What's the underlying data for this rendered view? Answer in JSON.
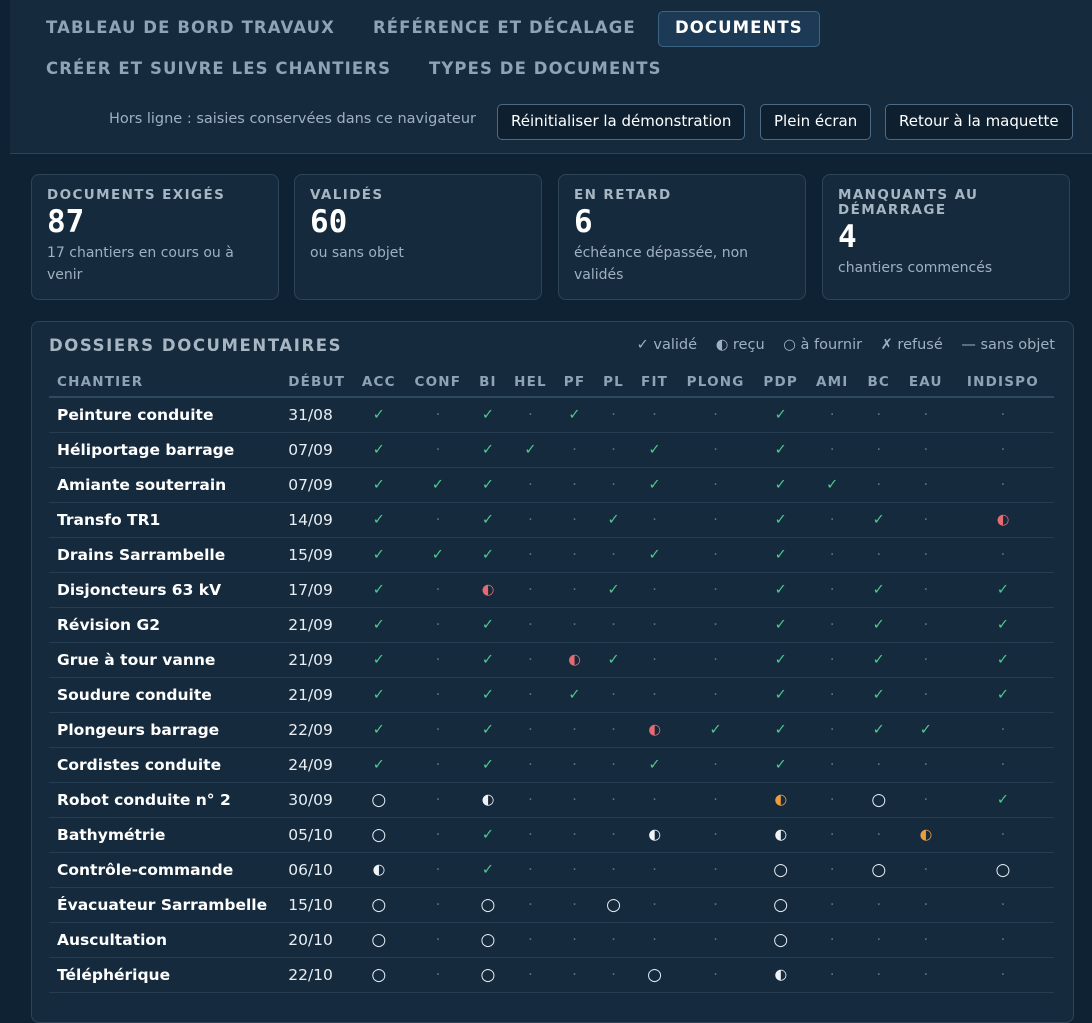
{
  "nav": {
    "tabs": [
      {
        "label": "TABLEAU DE BORD TRAVAUX"
      },
      {
        "label": "RÉFÉRENCE ET DÉCALAGE"
      },
      {
        "label": "DOCUMENTS"
      },
      {
        "label": "CRÉER ET SUIVRE LES CHANTIERS"
      },
      {
        "label": "TYPES DE DOCUMENTS"
      }
    ],
    "active_tab": "DOCUMENTS"
  },
  "toolbar": {
    "offline_note": "Hors ligne : saisies conservées dans ce navigateur",
    "reset_label": "Réinitialiser la démonstration",
    "fullscreen_label": "Plein écran",
    "back_label": "Retour à la maquette"
  },
  "cards": [
    {
      "label": "DOCUMENTS EXIGÉS",
      "value": "87",
      "sub": "17 chantiers en cours ou à venir"
    },
    {
      "label": "VALIDÉS",
      "value": "60",
      "sub": "ou sans objet"
    },
    {
      "label": "EN RETARD",
      "value": "6",
      "sub": "échéance dépassée, non validés"
    },
    {
      "label": "MANQUANTS AU DÉMARRAGE",
      "value": "4",
      "sub": "chantiers commencés"
    }
  ],
  "panel": {
    "title": "DOSSIERS DOCUMENTAIRES",
    "legend": [
      "✓ validé",
      "◐ reçu",
      "○ à fournir",
      "✗ refusé",
      "— sans objet"
    ]
  },
  "colors": {
    "validated": "#4fc88e",
    "late": "#e56a72",
    "warning": "#eb9c3f",
    "background": "#0f2233",
    "panel": "#152a3c"
  },
  "table": {
    "columns": [
      "CHANTIER",
      "DÉBUT",
      "ACC",
      "CONF",
      "BI",
      "HEL",
      "PF",
      "PL",
      "FIT",
      "PLONG",
      "PDP",
      "AMI",
      "BC",
      "EAU",
      "INDISPO"
    ],
    "rows": [
      {
        "name": "Peinture conduite",
        "start": "31/08",
        "cells": [
          "✓",
          "·",
          "✓",
          "·",
          "✓",
          "·",
          "·",
          "·",
          "✓",
          "·",
          "·",
          "·",
          "·"
        ]
      },
      {
        "name": "Héliportage barrage",
        "start": "07/09",
        "cells": [
          "✓",
          "·",
          "✓",
          "✓",
          "·",
          "·",
          "✓",
          "·",
          "✓",
          "·",
          "·",
          "·",
          "·"
        ]
      },
      {
        "name": "Amiante souterrain",
        "start": "07/09",
        "cells": [
          "✓",
          "✓",
          "✓",
          "·",
          "·",
          "·",
          "✓",
          "·",
          "✓",
          "✓",
          "·",
          "·",
          "·"
        ]
      },
      {
        "name": "Transfo TR1",
        "start": "14/09",
        "cells": [
          "✓",
          "·",
          "✓",
          "·",
          "·",
          "✓",
          "·",
          "·",
          "✓",
          "·",
          "✓",
          "·",
          "◐!"
        ]
      },
      {
        "name": "Drains Sarrambelle",
        "start": "15/09",
        "cells": [
          "✓",
          "✓",
          "✓",
          "·",
          "·",
          "·",
          "✓",
          "·",
          "✓",
          "·",
          "·",
          "·",
          "·"
        ]
      },
      {
        "name": "Disjoncteurs 63 kV",
        "start": "17/09",
        "cells": [
          "✓",
          "·",
          "◐!",
          "·",
          "·",
          "✓",
          "·",
          "·",
          "✓",
          "·",
          "✓",
          "·",
          "✓"
        ]
      },
      {
        "name": "Révision G2",
        "start": "21/09",
        "cells": [
          "✓",
          "·",
          "✓",
          "·",
          "·",
          "·",
          "·",
          "·",
          "✓",
          "·",
          "✓",
          "·",
          "✓"
        ]
      },
      {
        "name": "Grue à tour vanne",
        "start": "21/09",
        "cells": [
          "✓",
          "·",
          "✓",
          "·",
          "◐!",
          "✓",
          "·",
          "·",
          "✓",
          "·",
          "✓",
          "·",
          "✓"
        ]
      },
      {
        "name": "Soudure conduite",
        "start": "21/09",
        "cells": [
          "✓",
          "·",
          "✓",
          "·",
          "✓",
          "·",
          "·",
          "·",
          "✓",
          "·",
          "✓",
          "·",
          "✓"
        ]
      },
      {
        "name": "Plongeurs barrage",
        "start": "22/09",
        "cells": [
          "✓",
          "·",
          "✓",
          "·",
          "·",
          "·",
          "◐!",
          "✓",
          "✓",
          "·",
          "✓",
          "✓",
          "·"
        ]
      },
      {
        "name": "Cordistes conduite",
        "start": "24/09",
        "cells": [
          "✓",
          "·",
          "✓",
          "·",
          "·",
          "·",
          "✓",
          "·",
          "✓",
          "·",
          "·",
          "·",
          "·"
        ]
      },
      {
        "name": "Robot conduite n° 2",
        "start": "30/09",
        "cells": [
          "○",
          "·",
          "◐",
          "·",
          "·",
          "·",
          "·",
          "·",
          "◐w",
          "·",
          "○",
          "·",
          "✓"
        ]
      },
      {
        "name": "Bathymétrie",
        "start": "05/10",
        "cells": [
          "○",
          "·",
          "✓",
          "·",
          "·",
          "·",
          "◐",
          "·",
          "◐",
          "·",
          "·",
          "◐w",
          "·"
        ]
      },
      {
        "name": "Contrôle-commande",
        "start": "06/10",
        "cells": [
          "◐",
          "·",
          "✓",
          "·",
          "·",
          "·",
          "·",
          "·",
          "○",
          "·",
          "○",
          "·",
          "○"
        ]
      },
      {
        "name": "Évacuateur Sarrambelle",
        "start": "15/10",
        "cells": [
          "○",
          "·",
          "○",
          "·",
          "·",
          "○",
          "·",
          "·",
          "○",
          "·",
          "·",
          "·",
          "·"
        ]
      },
      {
        "name": "Auscultation",
        "start": "20/10",
        "cells": [
          "○",
          "·",
          "○",
          "·",
          "·",
          "·",
          "·",
          "·",
          "○",
          "·",
          "·",
          "·",
          "·"
        ]
      },
      {
        "name": "Téléphérique",
        "start": "22/10",
        "cells": [
          "○",
          "·",
          "○",
          "·",
          "·",
          "·",
          "○",
          "·",
          "◐",
          "·",
          "·",
          "·",
          "·"
        ]
      }
    ]
  }
}
